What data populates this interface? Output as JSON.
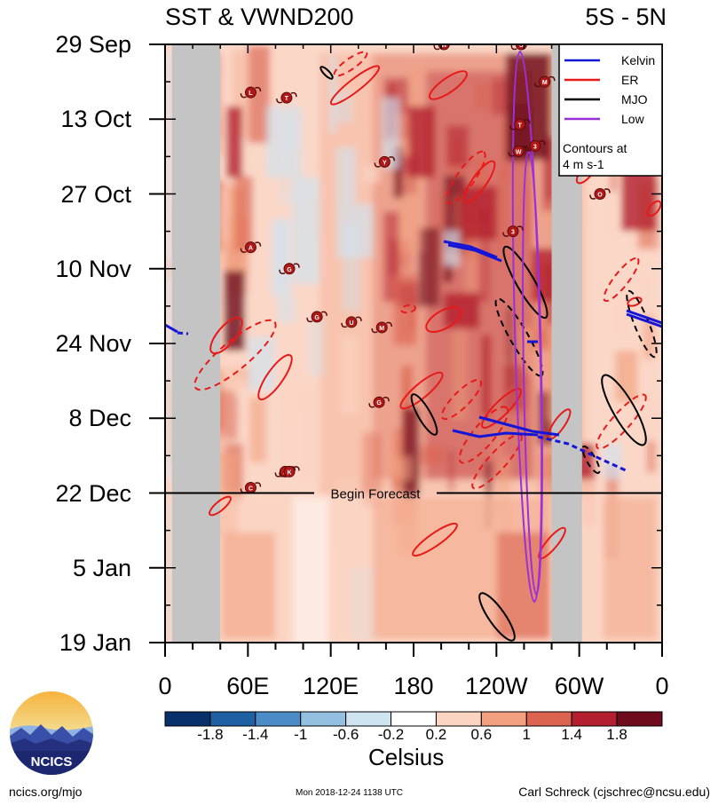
{
  "header": {
    "title_left": "SST & VWND200",
    "title_right": "5S - 5N"
  },
  "chart_data": {
    "type": "heatmap",
    "title": "SST & VWND200",
    "region": "5S - 5N",
    "y_axis": {
      "labels": [
        "29 Sep",
        "13 Oct",
        "27 Oct",
        "10 Nov",
        "24 Nov",
        "8 Dec",
        "22 Dec",
        "5 Jan",
        "19 Jan"
      ],
      "range": [
        "29 Sep",
        "19 Jan"
      ],
      "inverted": true
    },
    "x_axis": {
      "labels": [
        "0",
        "60E",
        "120E",
        "180",
        "120W",
        "60W",
        "0"
      ],
      "range_deg_east": [
        0,
        360
      ]
    },
    "forecast_line": {
      "date": "22 Dec",
      "label": "Begin Forecast"
    },
    "colorbar": {
      "ticks": [
        "-1.8",
        "-1.4",
        "-1",
        "-0.6",
        "-0.2",
        "0.2",
        "0.6",
        "1",
        "1.4",
        "1.8"
      ],
      "colors": [
        "#08306b",
        "#1f5fa3",
        "#4b8cc8",
        "#93bfe0",
        "#cfe4f1",
        "#ffffff",
        "#fbd4c2",
        "#f2a080",
        "#db6350",
        "#b31f2e",
        "#6e0b1c"
      ],
      "label": "Celsius"
    },
    "legend": {
      "placement": "top-right",
      "entries": [
        {
          "name": "Kelvin",
          "color": "#1515d8"
        },
        {
          "name": "ER",
          "color": "#e81919"
        },
        {
          "name": "MJO",
          "color": "#000000"
        },
        {
          "name": "Low",
          "color": "#9b30d8"
        }
      ],
      "note": [
        "Contours at",
        "4 m s-1"
      ]
    },
    "land_masks": [
      {
        "name": "Africa",
        "lon": [
          5,
          40
        ]
      },
      {
        "name": "South America",
        "lon": [
          280,
          302
        ]
      }
    ],
    "storms": [
      {
        "label": "W",
        "lon": 202,
        "date": "29 Sep"
      },
      {
        "label": "S",
        "lon": 258,
        "date": "29 Sep"
      },
      {
        "label": "L",
        "lon": 62,
        "date": "8 Oct"
      },
      {
        "label": "T",
        "lon": 88,
        "date": "9 Oct"
      },
      {
        "label": "M",
        "lon": 275,
        "date": "6 Oct"
      },
      {
        "label": "T",
        "lon": 257,
        "date": "14 Oct"
      },
      {
        "label": "W",
        "lon": 256,
        "date": "19 Oct"
      },
      {
        "label": "3",
        "lon": 268,
        "date": "18 Oct"
      },
      {
        "label": "Y",
        "lon": 159,
        "date": "21 Oct"
      },
      {
        "label": "3",
        "lon": 252,
        "date": "3 Nov"
      },
      {
        "label": "O",
        "lon": 315,
        "date": "27 Oct"
      },
      {
        "label": "A",
        "lon": 62,
        "date": "6 Nov"
      },
      {
        "label": "G",
        "lon": 90,
        "date": "10 Nov"
      },
      {
        "label": "G",
        "lon": 110,
        "date": "19 Nov"
      },
      {
        "label": "U",
        "lon": 135,
        "date": "20 Nov"
      },
      {
        "label": "M",
        "lon": 157,
        "date": "21 Nov"
      },
      {
        "label": "G",
        "lon": 155,
        "date": "5 Dec"
      },
      {
        "label": "S",
        "lon": 87,
        "date": "18 Dec"
      },
      {
        "label": "K",
        "lon": 90,
        "date": "18 Dec"
      },
      {
        "label": "C",
        "lon": 62,
        "date": "21 Dec"
      }
    ]
  },
  "logo": {
    "text": "NCICS"
  },
  "footer": {
    "left": "ncics.org/mjo",
    "center": "Mon 2018-12-24 1138 UTC",
    "right": "Carl Schreck (cjschrec@ncsu.edu)"
  }
}
